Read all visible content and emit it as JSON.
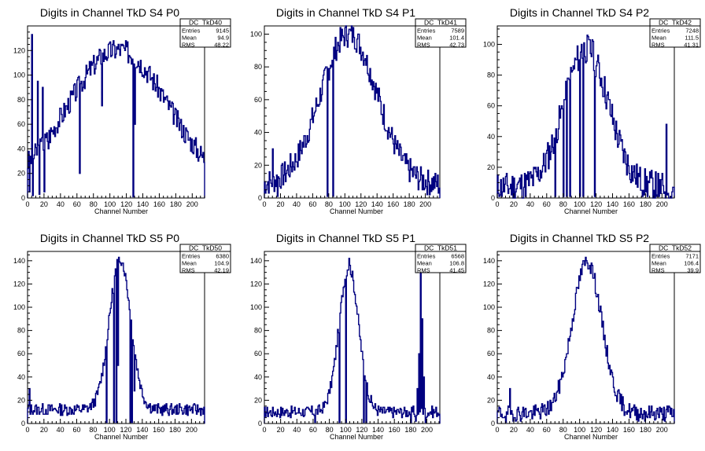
{
  "chart_data": [
    {
      "type": "histogram",
      "title": "Digits in Channel TkD S4 P0",
      "xlabel": "Channel Number",
      "ylabel": "",
      "xlim": [
        0,
        215
      ],
      "ylim": [
        0,
        140
      ],
      "xticks": [
        0,
        20,
        40,
        60,
        80,
        100,
        120,
        140,
        160,
        180,
        200
      ],
      "yticks": [
        0,
        20,
        40,
        60,
        80,
        100,
        120
      ],
      "stats": {
        "name": "DC_TkD40",
        "entries": "9145",
        "mean": "94.9",
        "rms": "48.22"
      },
      "peak_x": 110,
      "peak_y": 113,
      "width": 60,
      "baseline": 8,
      "noise": 9,
      "seed": 3,
      "spikes": [
        [
          2,
          5
        ],
        [
          5,
          133
        ],
        [
          6,
          2
        ],
        [
          12,
          95
        ],
        [
          14,
          3
        ],
        [
          18,
          90
        ],
        [
          20,
          5
        ],
        [
          25,
          40
        ],
        [
          63,
          20
        ],
        [
          90,
          75
        ],
        [
          128,
          1
        ],
        [
          130,
          60
        ]
      ]
    },
    {
      "type": "histogram",
      "title": "Digits in Channel TkD S4 P1",
      "xlabel": "Channel Number",
      "ylabel": "",
      "xlim": [
        0,
        218
      ],
      "ylim": [
        0,
        105
      ],
      "xticks": [
        0,
        20,
        40,
        60,
        80,
        100,
        120,
        140,
        160,
        180,
        200
      ],
      "yticks": [
        0,
        20,
        40,
        60,
        80,
        100
      ],
      "stats": {
        "name": "DC_TkD41",
        "entries": "7589",
        "mean": "101.4",
        "rms": "42.73"
      },
      "peak_x": 105,
      "peak_y": 92,
      "width": 35,
      "baseline": 8,
      "noise": 8,
      "seed": 7,
      "spikes": [
        [
          10,
          30
        ],
        [
          16,
          1
        ],
        [
          78,
          1
        ],
        [
          85,
          1
        ],
        [
          104,
          100
        ],
        [
          111,
          98
        ],
        [
          125,
          85
        ],
        [
          218,
          1
        ]
      ]
    },
    {
      "type": "histogram",
      "title": "Digits in Channel TkD S4 P2",
      "xlabel": "Channel Number",
      "ylabel": "",
      "xlim": [
        0,
        215
      ],
      "ylim": [
        0,
        112
      ],
      "xticks": [
        0,
        20,
        40,
        60,
        80,
        100,
        120,
        140,
        160,
        180,
        200
      ],
      "yticks": [
        0,
        20,
        40,
        60,
        80,
        100
      ],
      "stats": {
        "name": "DC_TkD42",
        "entries": "7248",
        "mean": "111.5",
        "rms": "41.31"
      },
      "peak_x": 108,
      "peak_y": 90,
      "width": 27,
      "baseline": 7,
      "noise": 10,
      "seed": 11,
      "spikes": [
        [
          2,
          1
        ],
        [
          70,
          1
        ],
        [
          80,
          1
        ],
        [
          84,
          1
        ],
        [
          88,
          1
        ],
        [
          100,
          1
        ],
        [
          102,
          100
        ],
        [
          104,
          1
        ],
        [
          115,
          103
        ],
        [
          118,
          1
        ],
        [
          196,
          1
        ],
        [
          205,
          48
        ],
        [
          210,
          1
        ]
      ]
    },
    {
      "type": "histogram",
      "title": "Digits in Channel TkD S5 P0",
      "xlabel": "Channel Number",
      "ylabel": "",
      "xlim": [
        0,
        216
      ],
      "ylim": [
        0,
        148
      ],
      "xticks": [
        0,
        20,
        40,
        60,
        80,
        100,
        120,
        140,
        160,
        180,
        200
      ],
      "yticks": [
        0,
        20,
        40,
        60,
        80,
        100,
        120,
        140
      ],
      "stats": {
        "name": "DC_TkD50",
        "entries": "6380",
        "mean": "104.9",
        "rms": "42.19"
      },
      "peak_x": 113,
      "peak_y": 130,
      "width": 13,
      "baseline": 12,
      "noise": 5,
      "seed": 13,
      "spikes": [
        [
          2,
          30
        ],
        [
          96,
          1
        ],
        [
          105,
          1
        ],
        [
          108,
          1
        ],
        [
          110,
          50
        ],
        [
          115,
          138
        ],
        [
          125,
          1
        ],
        [
          127,
          1
        ],
        [
          130,
          28
        ]
      ]
    },
    {
      "type": "histogram",
      "title": "Digits in Channel TkD S5 P1",
      "xlabel": "Channel Number",
      "ylabel": "",
      "xlim": [
        0,
        216
      ],
      "ylim": [
        0,
        148
      ],
      "xticks": [
        0,
        20,
        40,
        60,
        80,
        100,
        120,
        140,
        160,
        180,
        200
      ],
      "yticks": [
        0,
        20,
        40,
        60,
        80,
        100,
        120,
        140
      ],
      "stats": {
        "name": "DC_TkD51",
        "entries": "6568",
        "mean": "106.8",
        "rms": "41.45"
      },
      "peak_x": 104,
      "peak_y": 125,
      "width": 12,
      "baseline": 10,
      "noise": 5,
      "seed": 17,
      "spikes": [
        [
          62,
          1
        ],
        [
          92,
          1
        ],
        [
          100,
          1
        ],
        [
          104,
          142
        ],
        [
          122,
          1
        ],
        [
          125,
          1
        ],
        [
          180,
          1
        ],
        [
          186,
          2
        ],
        [
          188,
          30
        ],
        [
          190,
          60
        ],
        [
          192,
          130
        ],
        [
          194,
          90
        ],
        [
          196,
          40
        ],
        [
          198,
          1
        ]
      ]
    },
    {
      "type": "histogram",
      "title": "Digits in Channel TkD S5 P2",
      "xlabel": "Channel Number",
      "ylabel": "",
      "xlim": [
        0,
        215
      ],
      "ylim": [
        0,
        148
      ],
      "xticks": [
        0,
        20,
        40,
        60,
        80,
        100,
        120,
        140,
        160,
        180,
        200
      ],
      "yticks": [
        0,
        20,
        40,
        60,
        80,
        100,
        120,
        140
      ],
      "stats": {
        "name": "DC_TkD52",
        "entries": "7171",
        "mean": "106.4",
        "rms": "39.9"
      },
      "peak_x": 109,
      "peak_y": 130,
      "width": 18,
      "baseline": 9,
      "noise": 7,
      "seed": 19,
      "spikes": [
        [
          10,
          1
        ],
        [
          15,
          30
        ],
        [
          105,
          140
        ],
        [
          114,
          138
        ],
        [
          190,
          10
        ],
        [
          200,
          8
        ]
      ]
    }
  ],
  "stats_labels": {
    "entries": "Entries",
    "mean": "Mean",
    "rms": "RMS"
  },
  "line_color": "#000080"
}
